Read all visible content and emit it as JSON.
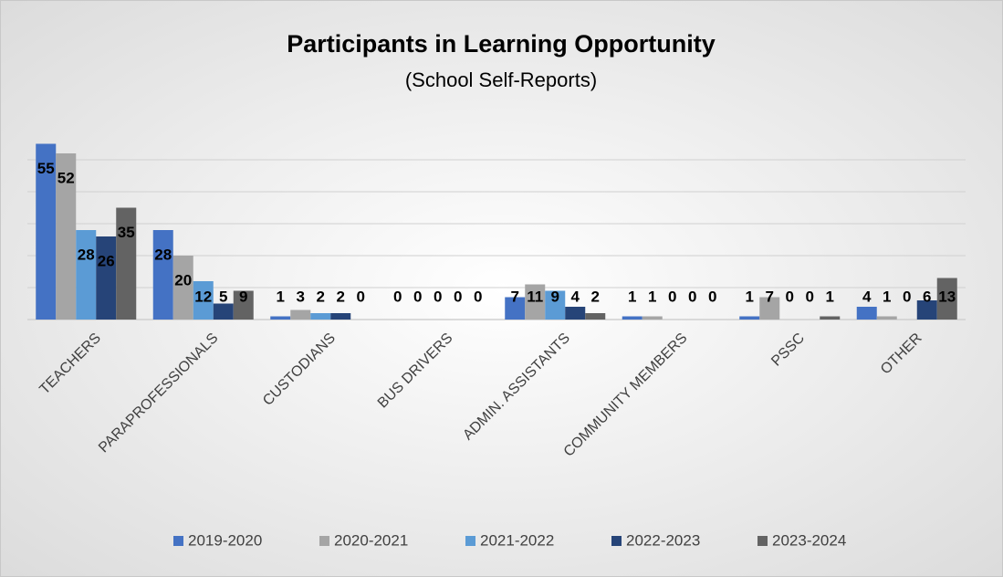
{
  "chart_data": {
    "type": "bar",
    "title": "Participants in Learning Opportunity",
    "subtitle": "(School Self-Reports)",
    "categories": [
      "TEACHERS",
      "PARAPROFESSIONALS",
      "CUSTODIANS",
      "BUS DRIVERS",
      "ADMIN. ASSISTANTS",
      "COMMUNITY MEMBERS",
      "PSSC",
      "OTHER"
    ],
    "series": [
      {
        "name": "2019-2020",
        "color": "#4472c4",
        "values": [
          55,
          28,
          1,
          0,
          7,
          1,
          1,
          4
        ]
      },
      {
        "name": "2020-2021",
        "color": "#a5a5a5",
        "values": [
          52,
          20,
          3,
          0,
          11,
          1,
          7,
          1
        ]
      },
      {
        "name": "2021-2022",
        "color": "#5b9bd5",
        "values": [
          28,
          12,
          2,
          0,
          9,
          0,
          0,
          0
        ]
      },
      {
        "name": "2022-2023",
        "color": "#264478",
        "values": [
          26,
          5,
          2,
          0,
          4,
          0,
          0,
          6
        ]
      },
      {
        "name": "2023-2024",
        "color": "#636363",
        "values": [
          35,
          9,
          0,
          0,
          2,
          0,
          1,
          13
        ]
      }
    ],
    "ylim": [
      0,
      60
    ],
    "yticks": [
      0,
      10,
      20,
      30,
      40,
      50
    ],
    "grid": true,
    "legend": "bottom"
  }
}
